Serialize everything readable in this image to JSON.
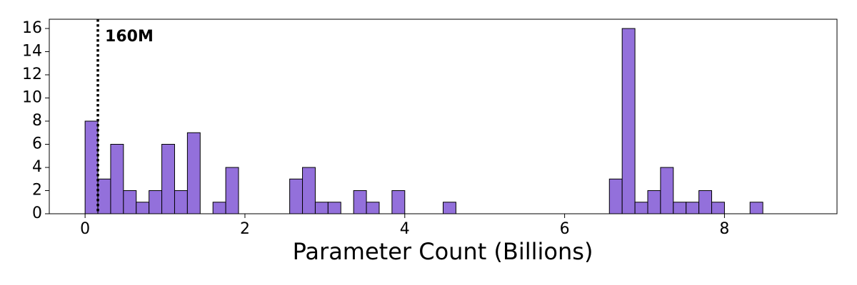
{
  "chart_data": {
    "type": "histogram",
    "xlabel": "Parameter Count (Billions)",
    "bins": [
      0,
      0.16,
      0.32,
      0.48,
      0.64,
      0.8,
      0.96,
      1.12,
      1.28,
      1.44,
      1.6,
      1.76,
      1.92,
      2.08,
      2.24,
      2.4,
      2.56,
      2.72,
      2.88,
      3.04,
      3.2,
      3.36,
      3.52,
      3.68,
      3.84,
      4.0,
      4.16,
      4.32,
      4.48,
      4.64,
      4.8,
      4.96,
      5.12,
      5.28,
      5.44,
      5.6,
      5.76,
      5.92,
      6.08,
      6.24,
      6.4,
      6.56,
      6.72,
      6.88,
      7.04,
      7.2,
      7.36,
      7.52,
      7.68,
      7.84,
      8.0,
      8.16,
      8.32,
      8.48,
      8.64,
      8.8,
      8.96
    ],
    "values": [
      8,
      3,
      6,
      2,
      1,
      2,
      6,
      2,
      7,
      0,
      1,
      4,
      0,
      0,
      0,
      0,
      3,
      4,
      1,
      1,
      0,
      2,
      1,
      0,
      2,
      0,
      0,
      0,
      1,
      0,
      0,
      0,
      0,
      0,
      0,
      0,
      0,
      0,
      0,
      0,
      0,
      3,
      16,
      1,
      2,
      4,
      1,
      1,
      2,
      1,
      0,
      0,
      1,
      0,
      0,
      0
    ],
    "color": "#9370db",
    "edgecolor": "#000000",
    "xlim": [
      -0.448,
      9.408
    ],
    "ylim": [
      0,
      16.8
    ],
    "xticks": [
      0,
      2,
      4,
      6,
      8
    ],
    "yticks": [
      0,
      2,
      4,
      6,
      8,
      10,
      12,
      14,
      16
    ],
    "vline": {
      "value": 0.16,
      "label": "160M"
    }
  }
}
